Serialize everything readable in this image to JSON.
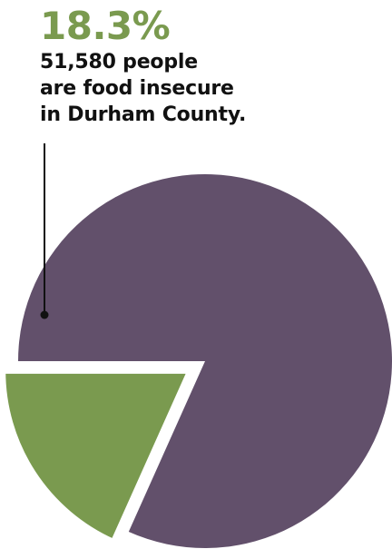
{
  "chart_data": {
    "type": "pie",
    "slices": [
      {
        "label": "food insecure",
        "value": 18.3,
        "color": "#7a9a4f"
      },
      {
        "label": "",
        "value": 81.7,
        "color": "#62506b"
      }
    ],
    "annotation": {
      "percent": "18.3%",
      "lines": [
        "51,580 people",
        "are food insecure",
        "in Durham County."
      ]
    }
  },
  "colors": {
    "highlight": "#7a9a4f",
    "remainder": "#62506b",
    "separator": "#ffffff",
    "leader": "#111111"
  }
}
